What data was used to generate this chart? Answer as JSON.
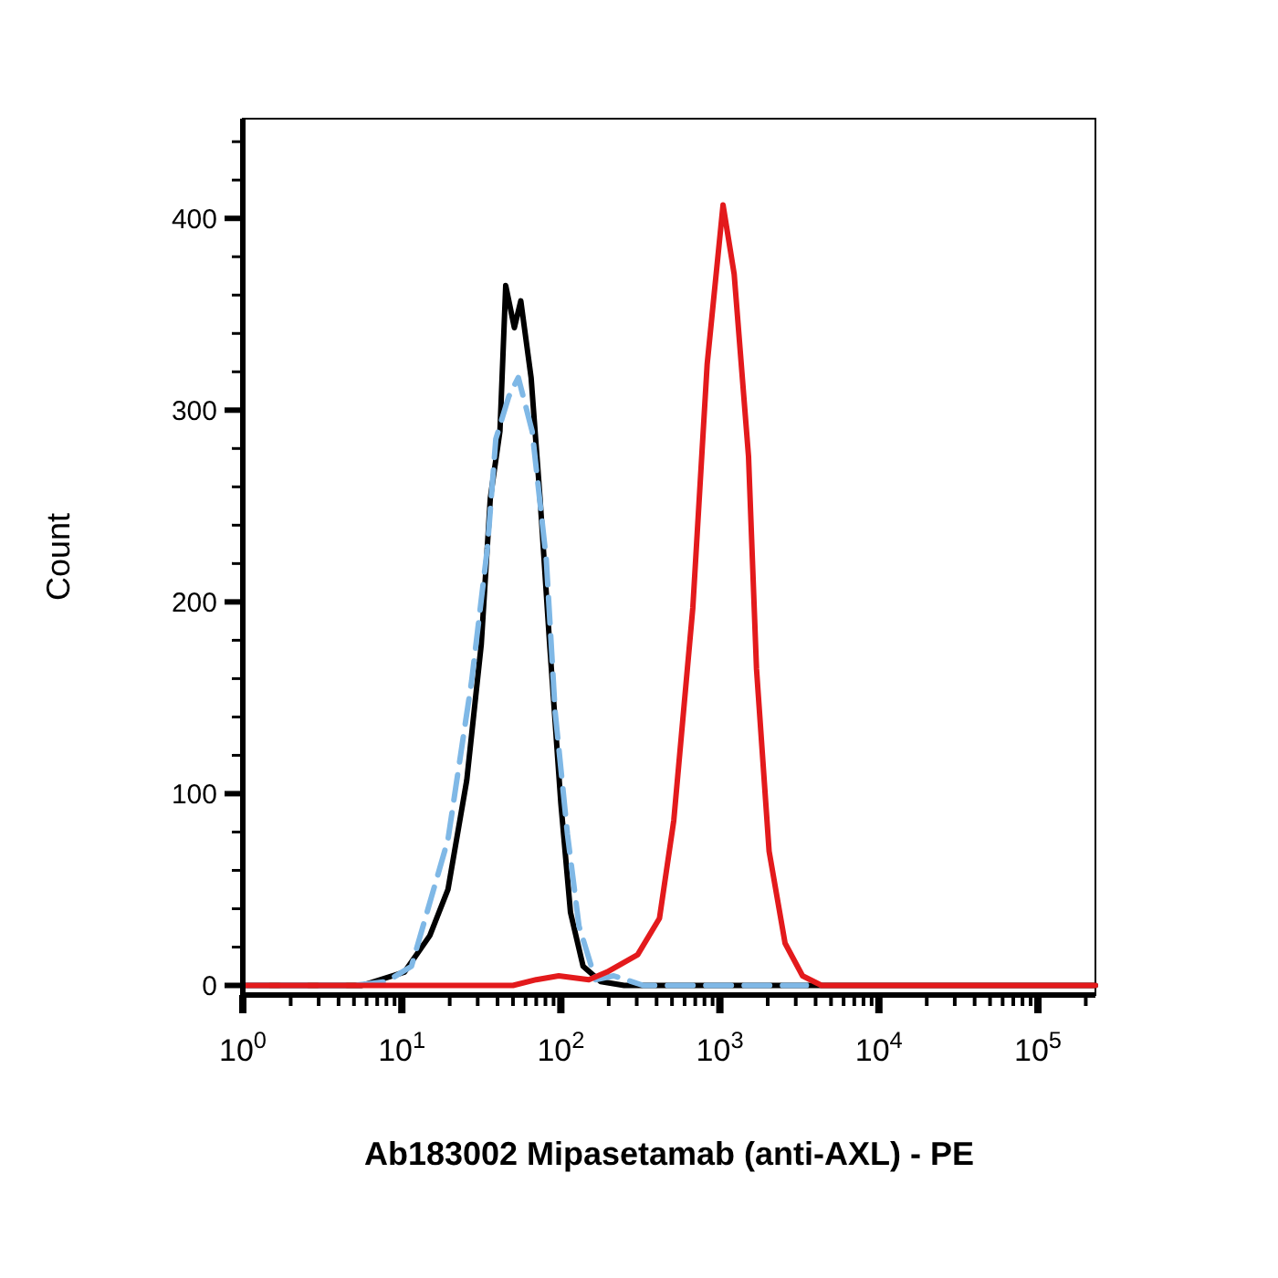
{
  "chart_data": {
    "type": "line",
    "xlabel": "Ab183002 Mipasetamab (anti-AXL) - PE",
    "ylabel": "Count",
    "log": "x",
    "xlim": [
      1,
      230000
    ],
    "ylim": [
      -5,
      452
    ],
    "xticks": [
      {
        "value": 1,
        "label": "10$^{0}$"
      },
      {
        "value": 2,
        "label": null
      },
      {
        "value": 3,
        "label": null
      },
      {
        "value": 4,
        "label": null
      },
      {
        "value": 5,
        "label": null
      },
      {
        "value": 6,
        "label": null
      },
      {
        "value": 7,
        "label": null
      },
      {
        "value": 8,
        "label": null
      },
      {
        "value": 9,
        "label": null
      },
      {
        "value": 10,
        "label": "10$^{1}$"
      },
      {
        "value": 20,
        "label": null
      },
      {
        "value": 30,
        "label": null
      },
      {
        "value": 40,
        "label": null
      },
      {
        "value": 50,
        "label": null
      },
      {
        "value": 60,
        "label": null
      },
      {
        "value": 70,
        "label": null
      },
      {
        "value": 80,
        "label": null
      },
      {
        "value": 90,
        "label": null
      },
      {
        "value": 100,
        "label": "10$^{2}$"
      },
      {
        "value": 200,
        "label": null
      },
      {
        "value": 300,
        "label": null
      },
      {
        "value": 400,
        "label": null
      },
      {
        "value": 500,
        "label": null
      },
      {
        "value": 600,
        "label": null
      },
      {
        "value": 700,
        "label": null
      },
      {
        "value": 800,
        "label": null
      },
      {
        "value": 900,
        "label": null
      },
      {
        "value": 1000,
        "label": "10$^{3}$"
      },
      {
        "value": 2000,
        "label": null
      },
      {
        "value": 3000,
        "label": null
      },
      {
        "value": 4000,
        "label": null
      },
      {
        "value": 5000,
        "label": null
      },
      {
        "value": 6000,
        "label": null
      },
      {
        "value": 7000,
        "label": null
      },
      {
        "value": 8000,
        "label": null
      },
      {
        "value": 9000,
        "label": null
      },
      {
        "value": 10000,
        "label": "10$^{4}$"
      },
      {
        "value": 20000,
        "label": null
      },
      {
        "value": 30000,
        "label": null
      },
      {
        "value": 40000,
        "label": null
      },
      {
        "value": 50000,
        "label": null
      },
      {
        "value": 60000,
        "label": null
      },
      {
        "value": 70000,
        "label": null
      },
      {
        "value": 80000,
        "label": null
      },
      {
        "value": 90000,
        "label": null
      },
      {
        "value": 100000,
        "label": "10$^{5}$"
      },
      {
        "value": 200000,
        "label": null
      }
    ],
    "yticks": [
      0,
      {
        "value": 20,
        "label": null
      },
      {
        "value": 40,
        "label": null
      },
      {
        "value": 60,
        "label": null
      },
      {
        "value": 80,
        "label": null
      },
      100,
      {
        "value": 120,
        "label": null
      },
      {
        "value": 140,
        "label": null
      },
      {
        "value": 160,
        "label": null
      },
      {
        "value": 180,
        "label": null
      },
      200,
      {
        "value": 220,
        "label": null
      },
      {
        "value": 240,
        "label": null
      },
      {
        "value": 260,
        "label": null
      },
      {
        "value": 280,
        "label": null
      },
      300,
      {
        "value": 320,
        "label": null
      },
      {
        "value": 340,
        "label": null
      },
      {
        "value": 360,
        "label": null
      },
      {
        "value": 380,
        "label": null
      },
      400,
      {
        "value": 420,
        "label": null
      },
      {
        "value": 440,
        "label": null
      }
    ],
    "grid": false,
    "series": [
      {
        "color": "#000000",
        "line_style": "solid",
        "x": [
          1,
          3,
          5.6,
          10.4,
          15,
          19.5,
          25.6,
          31.6,
          36,
          41.4,
          45,
          51,
          56,
          65,
          74,
          85,
          100,
          115,
          138,
          178,
          250,
          1000,
          3000,
          230000
        ],
        "values": [
          0,
          0,
          0,
          7,
          26,
          50,
          107,
          178,
          254,
          289,
          365,
          343,
          357,
          317,
          254,
          178,
          95,
          38,
          10,
          2,
          0,
          0,
          0,
          0
        ]
      },
      {
        "color": "#7fb8e6",
        "line_style": "dashed",
        "x": [
          1,
          5,
          8,
          11.5,
          19.5,
          27.5,
          34.5,
          39,
          47,
          54,
          66,
          81,
          92,
          110,
          130,
          165,
          215,
          330,
          1000,
          3500
        ],
        "values": [
          0,
          0,
          2,
          10,
          76,
          159,
          228,
          285,
          307,
          317,
          289,
          222,
          143,
          79,
          31,
          3,
          5,
          0,
          0,
          0
        ]
      },
      {
        "color": "#e31a1c",
        "line_style": "solid",
        "x": [
          1,
          50,
          70,
          97,
          150,
          195,
          304,
          417,
          513,
          676,
          832,
          1047,
          1230,
          1514,
          1700,
          2040,
          2570,
          3310,
          4360,
          230000
        ],
        "values": [
          0,
          0,
          3,
          5,
          3,
          7,
          16,
          35,
          86,
          197,
          324,
          407,
          371,
          276,
          165,
          70,
          22,
          5,
          0,
          0
        ]
      }
    ]
  }
}
